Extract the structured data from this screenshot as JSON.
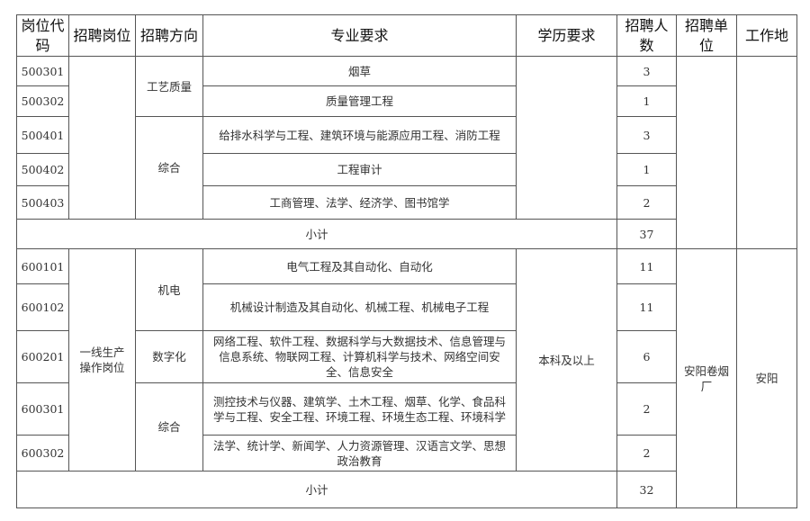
{
  "headers": [
    "岗位代码",
    "招聘岗位",
    "招聘方向",
    "专业要求",
    "学历要求",
    "招聘人数",
    "招聘单位",
    "工作地"
  ],
  "section1": {
    "rows": [
      {
        "code": "500301",
        "major": "烟草",
        "count": "3"
      },
      {
        "code": "500302",
        "major": "质量管理工程",
        "count": "1"
      },
      {
        "code": "500401",
        "major": "给排水科学与工程、建筑环境与能源应用工程、消防工程",
        "count": "3"
      },
      {
        "code": "500402",
        "major": "工程审计",
        "count": "1"
      },
      {
        "code": "500403",
        "major": "工商管理、法学、经济学、图书馆学",
        "count": "2"
      }
    ],
    "directions": [
      "工艺质量",
      "综合"
    ],
    "subtotal_label": "小计",
    "subtotal": "37"
  },
  "section2": {
    "position": "一线生产操作岗位",
    "education": "本科及以上",
    "unit": "安阳卷烟厂",
    "location": "安阳",
    "rows": [
      {
        "code": "600101",
        "major": "电气工程及其自动化、自动化",
        "count": "11"
      },
      {
        "code": "600102",
        "major": "机械设计制造及其自动化、机械工程、机械电子工程",
        "count": "11"
      },
      {
        "code": "600201",
        "major": "网络工程、软件工程、数据科学与大数据技术、信息管理与信息系统、物联网工程、计算机科学与技术、网络空间安全、信息安全",
        "count": "6"
      },
      {
        "code": "600301",
        "major": "测控技术与仪器、建筑学、土木工程、烟草、化学、食品科学与工程、安全工程、环境工程、环境生态工程、环境科学",
        "count": "2"
      },
      {
        "code": "600302",
        "major": "法学、统计学、新闻学、人力资源管理、汉语言文学、思想政治教育",
        "count": "2"
      }
    ],
    "directions": [
      "机电",
      "数字化",
      "综合"
    ],
    "subtotal_label": "小计",
    "subtotal": "32"
  }
}
